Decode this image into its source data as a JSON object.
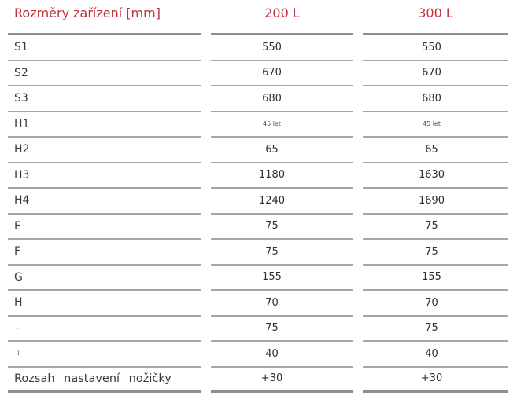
{
  "accent_color": "#bc3238",
  "separator_color": "#a5a5a5",
  "strong_line_color": "#8e8e8e",
  "table": {
    "header": {
      "label": "Rozměry zařízení [mm]",
      "col_200": "200 L",
      "col_300": "300 L"
    },
    "rows": [
      {
        "label": "S1",
        "v200": "550",
        "v300": "550"
      },
      {
        "label": "S2",
        "v200": "670",
        "v300": "670"
      },
      {
        "label": "S3",
        "v200": "680",
        "v300": "680"
      },
      {
        "label": "H1",
        "v200": "45 let",
        "v300": "45 let",
        "value_style": "small"
      },
      {
        "label": "H2",
        "v200": "65",
        "v300": "65"
      },
      {
        "label": "H3",
        "v200": "1180",
        "v300": "1630"
      },
      {
        "label": "H4",
        "v200": "1240",
        "v300": "1690"
      },
      {
        "label": "E",
        "v200": "75",
        "v300": "75"
      },
      {
        "label": "F",
        "v200": "75",
        "v300": "75"
      },
      {
        "label": "G",
        "v200": "155",
        "v300": "155"
      },
      {
        "label": "H",
        "v200": "70",
        "v300": "70"
      },
      {
        "label": ".",
        "v200": "75",
        "v300": "75",
        "label_style": "tiny"
      },
      {
        "label": "I",
        "v200": "40",
        "v300": "40",
        "label_style": "tiny-serif"
      },
      {
        "label": "Rozsah nastavení nožičky",
        "v200": "+30",
        "v300": "+30",
        "label_style": "spaced"
      }
    ]
  }
}
